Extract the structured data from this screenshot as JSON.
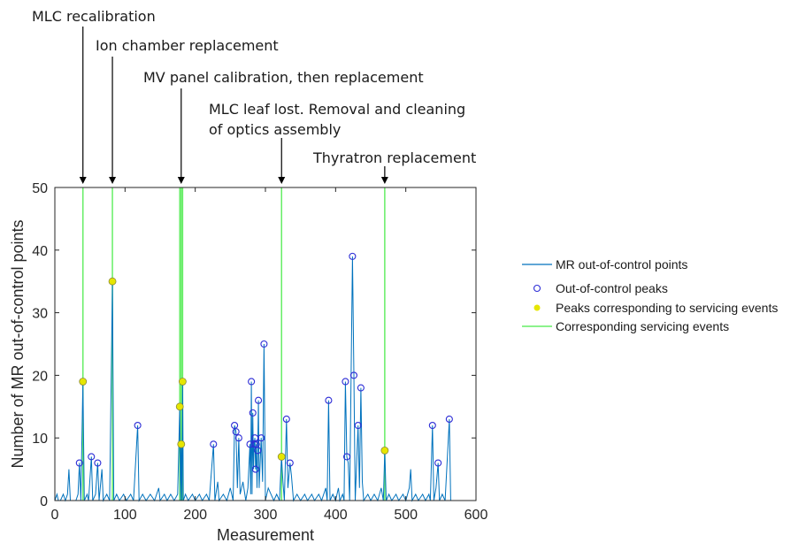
{
  "chart_data": {
    "type": "line",
    "xlabel": "Measurement",
    "ylabel": "Number of MR out-of-control points",
    "xlim": [
      0,
      600
    ],
    "ylim": [
      0,
      50
    ],
    "x_ticks": [
      "0",
      "100",
      "200",
      "300",
      "400",
      "500",
      "600"
    ],
    "y_ticks": [
      "0",
      "10",
      "20",
      "30",
      "40",
      "50"
    ],
    "grid": false,
    "legend_position": "right",
    "legend": [
      {
        "key": "line",
        "label": "MR out-of-control points"
      },
      {
        "key": "peaks",
        "label": "Out-of-control peaks"
      },
      {
        "key": "service_peaks",
        "label": "Peaks corresponding to servicing events"
      },
      {
        "key": "events",
        "label": "Corresponding servicing events"
      }
    ],
    "colors": {
      "line": "#0072BD",
      "peaks": "#2d2dd6",
      "service_peaks": "#e6e600",
      "events": "#66ee66"
    },
    "series_line": [
      [
        0,
        0
      ],
      [
        3,
        1
      ],
      [
        5,
        0
      ],
      [
        8,
        0
      ],
      [
        12,
        1
      ],
      [
        15,
        0
      ],
      [
        18,
        1
      ],
      [
        20,
        5
      ],
      [
        22,
        0
      ],
      [
        26,
        0
      ],
      [
        30,
        0
      ],
      [
        33,
        1
      ],
      [
        35,
        6
      ],
      [
        37,
        0
      ],
      [
        40,
        19
      ],
      [
        42,
        0
      ],
      [
        46,
        1
      ],
      [
        48,
        0
      ],
      [
        52,
        7
      ],
      [
        54,
        0
      ],
      [
        58,
        1
      ],
      [
        61,
        6
      ],
      [
        63,
        0
      ],
      [
        67,
        5
      ],
      [
        69,
        0
      ],
      [
        74,
        1
      ],
      [
        78,
        0
      ],
      [
        82,
        35
      ],
      [
        84,
        0
      ],
      [
        88,
        1
      ],
      [
        92,
        0
      ],
      [
        98,
        1
      ],
      [
        102,
        0
      ],
      [
        108,
        1
      ],
      [
        112,
        0
      ],
      [
        118,
        12
      ],
      [
        120,
        0
      ],
      [
        125,
        1
      ],
      [
        130,
        0
      ],
      [
        136,
        1
      ],
      [
        142,
        0
      ],
      [
        148,
        2
      ],
      [
        150,
        0
      ],
      [
        156,
        1
      ],
      [
        160,
        0
      ],
      [
        165,
        1
      ],
      [
        170,
        0
      ],
      [
        175,
        1
      ],
      [
        178,
        15
      ],
      [
        179,
        0
      ],
      [
        180,
        9
      ],
      [
        181,
        0
      ],
      [
        182,
        19
      ],
      [
        183,
        0
      ],
      [
        186,
        1
      ],
      [
        190,
        0
      ],
      [
        196,
        1
      ],
      [
        200,
        0
      ],
      [
        206,
        1
      ],
      [
        210,
        0
      ],
      [
        216,
        1
      ],
      [
        220,
        0
      ],
      [
        226,
        9
      ],
      [
        228,
        0
      ],
      [
        232,
        3
      ],
      [
        234,
        0
      ],
      [
        240,
        1
      ],
      [
        245,
        0
      ],
      [
        250,
        2
      ],
      [
        254,
        0
      ],
      [
        256,
        12
      ],
      [
        258,
        11
      ],
      [
        260,
        2
      ],
      [
        262,
        10
      ],
      [
        264,
        1
      ],
      [
        268,
        3
      ],
      [
        272,
        0
      ],
      [
        275,
        2
      ],
      [
        278,
        9
      ],
      [
        279,
        1
      ],
      [
        280,
        19
      ],
      [
        281,
        1
      ],
      [
        282,
        14
      ],
      [
        283,
        5
      ],
      [
        284,
        9
      ],
      [
        285,
        10
      ],
      [
        286,
        5
      ],
      [
        287,
        9
      ],
      [
        288,
        2
      ],
      [
        289,
        8
      ],
      [
        290,
        16
      ],
      [
        291,
        2
      ],
      [
        294,
        10
      ],
      [
        296,
        3
      ],
      [
        298,
        25
      ],
      [
        300,
        0
      ],
      [
        304,
        2
      ],
      [
        308,
        1
      ],
      [
        312,
        0
      ],
      [
        316,
        1
      ],
      [
        320,
        0
      ],
      [
        323,
        7
      ],
      [
        325,
        3
      ],
      [
        327,
        0
      ],
      [
        330,
        13
      ],
      [
        332,
        2
      ],
      [
        335,
        6
      ],
      [
        337,
        4
      ],
      [
        340,
        0
      ],
      [
        345,
        1
      ],
      [
        350,
        0
      ],
      [
        356,
        1
      ],
      [
        360,
        0
      ],
      [
        366,
        1
      ],
      [
        370,
        0
      ],
      [
        376,
        1
      ],
      [
        380,
        0
      ],
      [
        386,
        2
      ],
      [
        388,
        0
      ],
      [
        390,
        16
      ],
      [
        392,
        0
      ],
      [
        396,
        1
      ],
      [
        400,
        0
      ],
      [
        404,
        2
      ],
      [
        406,
        0
      ],
      [
        410,
        1
      ],
      [
        412,
        0
      ],
      [
        414,
        19
      ],
      [
        416,
        7
      ],
      [
        418,
        6
      ],
      [
        420,
        0
      ],
      [
        424,
        39
      ],
      [
        426,
        20
      ],
      [
        428,
        0
      ],
      [
        432,
        12
      ],
      [
        434,
        2
      ],
      [
        436,
        18
      ],
      [
        438,
        3
      ],
      [
        440,
        0
      ],
      [
        446,
        1
      ],
      [
        450,
        0
      ],
      [
        455,
        1
      ],
      [
        460,
        0
      ],
      [
        465,
        2
      ],
      [
        468,
        0
      ],
      [
        470,
        8
      ],
      [
        472,
        0
      ],
      [
        476,
        1
      ],
      [
        480,
        0
      ],
      [
        486,
        1
      ],
      [
        490,
        0
      ],
      [
        496,
        1
      ],
      [
        500,
        0
      ],
      [
        505,
        2
      ],
      [
        507,
        5
      ],
      [
        509,
        0
      ],
      [
        514,
        1
      ],
      [
        518,
        0
      ],
      [
        524,
        1
      ],
      [
        528,
        0
      ],
      [
        533,
        1
      ],
      [
        535,
        0
      ],
      [
        538,
        12
      ],
      [
        540,
        0
      ],
      [
        543,
        2
      ],
      [
        546,
        6
      ],
      [
        548,
        0
      ],
      [
        552,
        1
      ],
      [
        556,
        0
      ],
      [
        562,
        13
      ],
      [
        564,
        0
      ]
    ],
    "peaks": [
      [
        35,
        6
      ],
      [
        52,
        7
      ],
      [
        61,
        6
      ],
      [
        118,
        12
      ],
      [
        226,
        9
      ],
      [
        256,
        12
      ],
      [
        258,
        11
      ],
      [
        262,
        10
      ],
      [
        278,
        9
      ],
      [
        280,
        19
      ],
      [
        282,
        14
      ],
      [
        284,
        9
      ],
      [
        285,
        10
      ],
      [
        286,
        5
      ],
      [
        287,
        9
      ],
      [
        289,
        8
      ],
      [
        290,
        16
      ],
      [
        294,
        10
      ],
      [
        298,
        25
      ],
      [
        330,
        13
      ],
      [
        335,
        6
      ],
      [
        390,
        16
      ],
      [
        414,
        19
      ],
      [
        416,
        7
      ],
      [
        424,
        39
      ],
      [
        426,
        20
      ],
      [
        432,
        12
      ],
      [
        436,
        18
      ],
      [
        538,
        12
      ],
      [
        546,
        6
      ],
      [
        562,
        13
      ]
    ],
    "service_peaks": [
      [
        40,
        19
      ],
      [
        82,
        35
      ],
      [
        178,
        15
      ],
      [
        180,
        9
      ],
      [
        182,
        19
      ],
      [
        323,
        7
      ],
      [
        470,
        8
      ]
    ],
    "events_x": [
      40,
      82,
      178,
      180,
      182,
      323,
      470
    ],
    "annotations": [
      {
        "text": "MLC recalibration",
        "x": 40,
        "lines": [
          "MLC recalibration"
        ]
      },
      {
        "text": "Ion chamber replacement",
        "x": 82,
        "lines": [
          "Ion chamber replacement"
        ]
      },
      {
        "text": "MV panel calibration, then replacement",
        "x": 180,
        "lines": [
          "MV panel calibration, then replacement"
        ]
      },
      {
        "text": "MLC leaf lost. Removal and cleaning of optics assembly",
        "x": 323,
        "lines": [
          "MLC leaf lost. Removal and cleaning",
          "of optics assembly"
        ]
      },
      {
        "text": "Thyratron replacement",
        "x": 470,
        "lines": [
          "Thyratron replacement"
        ]
      }
    ]
  }
}
